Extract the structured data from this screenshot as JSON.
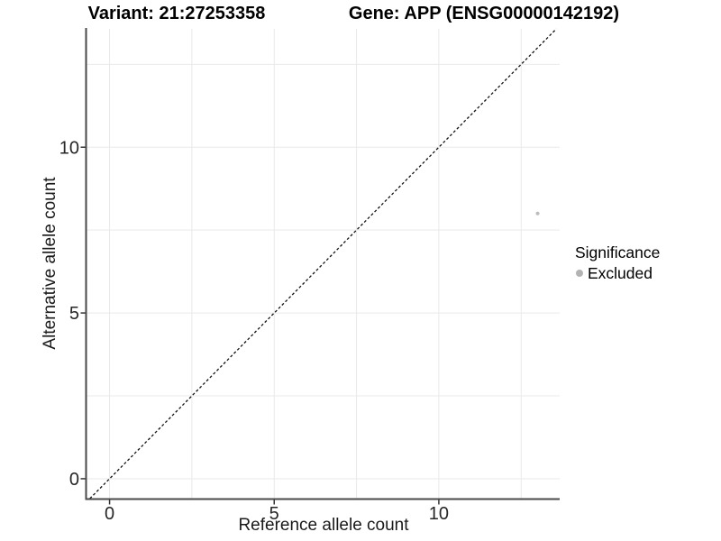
{
  "titles": {
    "variant": "Variant: 21:27253358",
    "gene": "Gene: APP (ENSG00000142192)"
  },
  "chart_data": {
    "type": "scatter",
    "xlabel": "Reference allele count",
    "ylabel": "Alternative allele count",
    "xlim": [
      -0.7,
      13.67
    ],
    "ylim": [
      -0.6,
      13.57
    ],
    "x_ticks": [
      0,
      5,
      10
    ],
    "y_ticks": [
      0,
      5,
      10
    ],
    "x_minor_ticks": [
      2.5,
      7.5,
      12.5
    ],
    "y_minor_ticks": [
      2.5,
      7.5,
      12.5
    ],
    "grid": true,
    "points": [
      {
        "x": 13,
        "y": 8,
        "series": "Excluded"
      }
    ],
    "reference_line": {
      "type": "identity",
      "style": "dashed",
      "label": "y = x"
    },
    "legend": {
      "title": "Significance",
      "position": "right",
      "entries": [
        {
          "label": "Excluded",
          "color": "#bdbdbd"
        }
      ]
    }
  },
  "colors": {
    "background": "#ffffff",
    "grid": "#e9e9e9",
    "axis_line": "#4a4a4a",
    "tick_mark": "#333333",
    "tick_label": "#262626",
    "point": "#bdbdbd",
    "legend_swatch": "#b3b3b3",
    "dashed_line": "#111111"
  }
}
